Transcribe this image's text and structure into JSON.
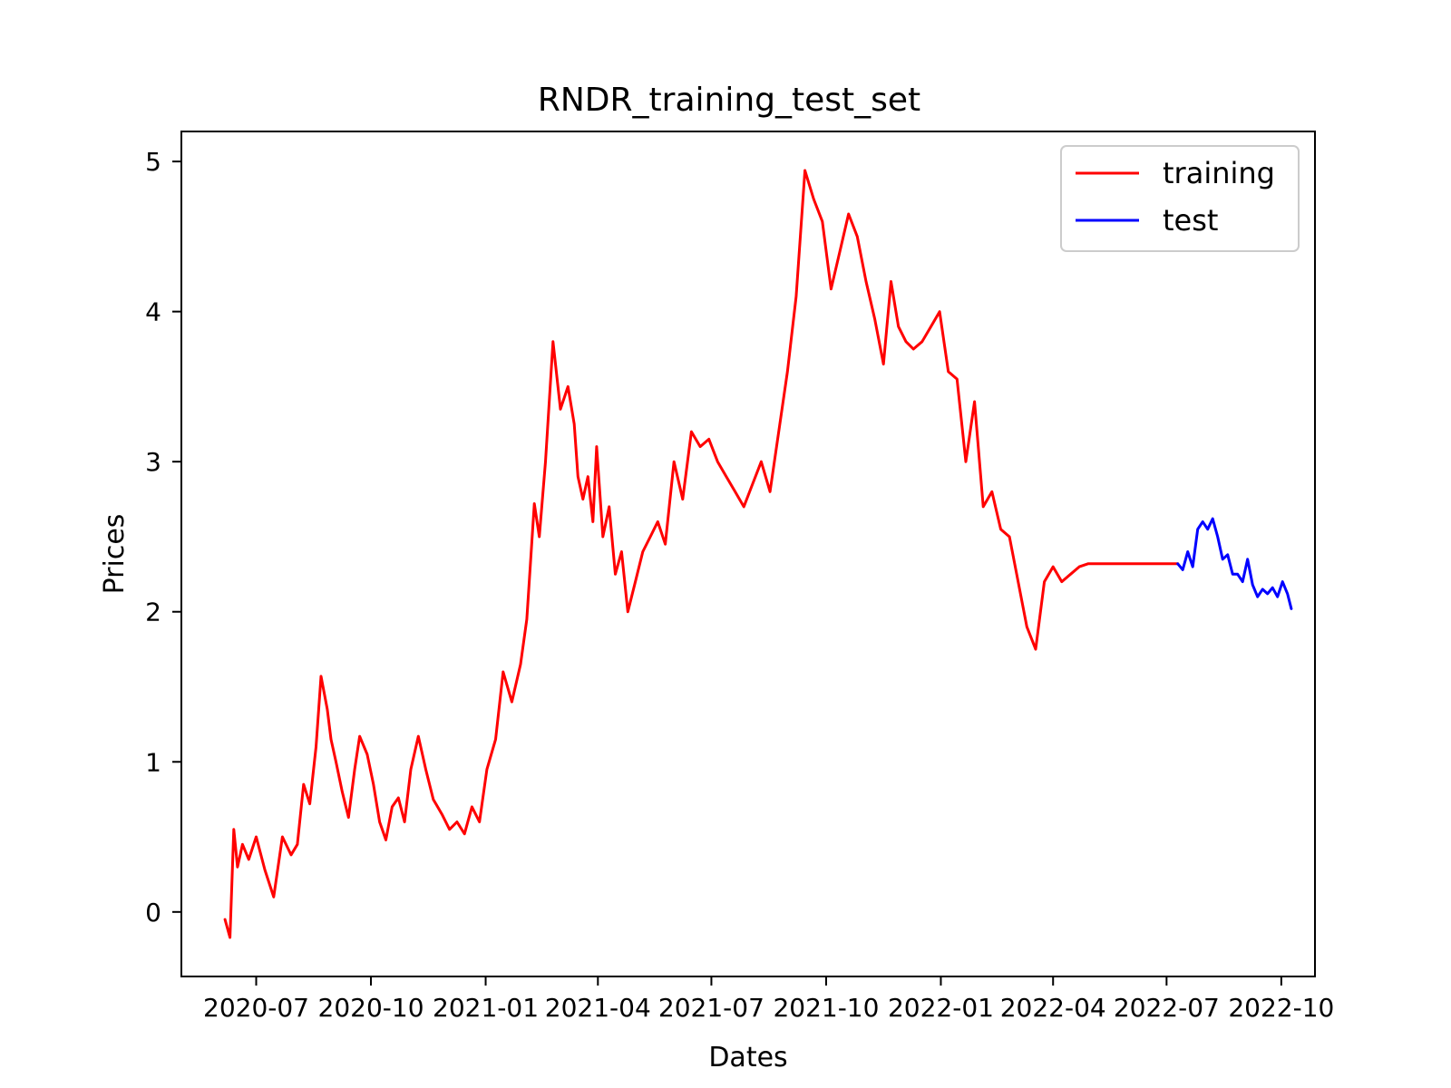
{
  "chart_data": {
    "type": "line",
    "title": "RNDR_training_test_set",
    "xlabel": "Dates",
    "ylabel": "Prices",
    "x_ticks": [
      "2020-07",
      "2020-10",
      "2021-01",
      "2021-04",
      "2021-07",
      "2021-10",
      "2022-01",
      "2022-04",
      "2022-07",
      "2022-10"
    ],
    "y_ticks": [
      "0",
      "1",
      "2",
      "3",
      "4",
      "5"
    ],
    "xlim": [
      "2020-05-02",
      "2022-10-28"
    ],
    "ylim": [
      -0.43,
      5.2
    ],
    "grid": false,
    "legend_position": "top-right",
    "series": [
      {
        "name": "training",
        "color": "#ff0000",
        "x": [
          "2020-06-06",
          "2020-06-10",
          "2020-06-13",
          "2020-06-16",
          "2020-06-20",
          "2020-06-25",
          "2020-07-01",
          "2020-07-08",
          "2020-07-15",
          "2020-07-22",
          "2020-07-29",
          "2020-08-03",
          "2020-08-08",
          "2020-08-13",
          "2020-08-18",
          "2020-08-22",
          "2020-08-27",
          "2020-08-30",
          "2020-09-03",
          "2020-09-08",
          "2020-09-13",
          "2020-09-18",
          "2020-09-22",
          "2020-09-28",
          "2020-10-03",
          "2020-10-08",
          "2020-10-13",
          "2020-10-18",
          "2020-10-23",
          "2020-10-28",
          "2020-11-02",
          "2020-11-08",
          "2020-11-14",
          "2020-11-20",
          "2020-11-27",
          "2020-12-03",
          "2020-12-09",
          "2020-12-15",
          "2020-12-21",
          "2020-12-27",
          "2021-01-02",
          "2021-01-09",
          "2021-01-15",
          "2021-01-22",
          "2021-01-29",
          "2021-02-03",
          "2021-02-09",
          "2021-02-13",
          "2021-02-18",
          "2021-02-24",
          "2021-03-02",
          "2021-03-08",
          "2021-03-13",
          "2021-03-16",
          "2021-03-20",
          "2021-03-24",
          "2021-03-28",
          "2021-03-31",
          "2021-04-05",
          "2021-04-10",
          "2021-04-15",
          "2021-04-20",
          "2021-04-25",
          "2021-05-01",
          "2021-05-07",
          "2021-05-13",
          "2021-05-19",
          "2021-05-25",
          "2021-06-01",
          "2021-06-08",
          "2021-06-15",
          "2021-06-22",
          "2021-06-29",
          "2021-07-06",
          "2021-07-13",
          "2021-07-20",
          "2021-07-27",
          "2021-08-03",
          "2021-08-10",
          "2021-08-17",
          "2021-08-24",
          "2021-08-31",
          "2021-09-07",
          "2021-09-14",
          "2021-09-21",
          "2021-09-28",
          "2021-10-05",
          "2021-10-12",
          "2021-10-19",
          "2021-10-26",
          "2021-11-02",
          "2021-11-09",
          "2021-11-16",
          "2021-11-22",
          "2021-11-28",
          "2021-12-04",
          "2021-12-10",
          "2021-12-17",
          "2021-12-24",
          "2021-12-31",
          "2022-01-07",
          "2022-01-14",
          "2022-01-21",
          "2022-01-28",
          "2022-02-04",
          "2022-02-11",
          "2022-02-18",
          "2022-02-25",
          "2022-03-04",
          "2022-03-11",
          "2022-03-18",
          "2022-03-25",
          "2022-04-01",
          "2022-04-08",
          "2022-04-15",
          "2022-04-22",
          "2022-04-29",
          "2022-05-06",
          "2022-05-13",
          "2022-05-20",
          "2022-05-27",
          "2022-06-03",
          "2022-06-10",
          "2022-06-15",
          "2022-06-20",
          "2022-06-27",
          "2022-07-04",
          "2022-07-10"
        ],
        "y": [
          -0.05,
          -0.17,
          0.55,
          0.3,
          0.45,
          0.35,
          0.5,
          0.28,
          0.1,
          0.5,
          0.38,
          0.45,
          0.85,
          0.72,
          1.1,
          1.57,
          1.35,
          1.15,
          1.0,
          0.8,
          0.63,
          0.95,
          1.17,
          1.05,
          0.85,
          0.6,
          0.48,
          0.7,
          0.76,
          0.6,
          0.95,
          1.17,
          0.95,
          0.75,
          0.65,
          0.55,
          0.6,
          0.52,
          0.7,
          0.6,
          0.95,
          1.15,
          1.6,
          1.4,
          1.65,
          1.95,
          2.72,
          2.5,
          3.0,
          3.8,
          3.35,
          3.5,
          3.25,
          2.9,
          2.75,
          2.9,
          2.6,
          3.1,
          2.5,
          2.7,
          2.25,
          2.4,
          2.0,
          2.2,
          2.4,
          2.5,
          2.6,
          2.45,
          3.0,
          2.75,
          3.2,
          3.1,
          3.15,
          3.0,
          2.9,
          2.8,
          2.7,
          2.85,
          3.0,
          2.8,
          3.2,
          3.6,
          4.1,
          4.94,
          4.75,
          4.6,
          4.15,
          4.4,
          4.65,
          4.5,
          4.2,
          3.95,
          3.65,
          4.2,
          3.9,
          3.8,
          3.75,
          3.8,
          3.9,
          4.0,
          3.6,
          3.55,
          3.0,
          3.4,
          2.7,
          2.8,
          2.55,
          2.5,
          2.2,
          1.9,
          1.75,
          2.2,
          2.3,
          2.2,
          2.25,
          2.3,
          2.32,
          2.32,
          2.32,
          2.32,
          2.32,
          2.32,
          2.32,
          2.32,
          2.32,
          2.32,
          2.32,
          2.32
        ]
      },
      {
        "name": "test",
        "color": "#0000ff",
        "x": [
          "2022-07-10",
          "2022-07-14",
          "2022-07-18",
          "2022-07-22",
          "2022-07-26",
          "2022-07-30",
          "2022-08-03",
          "2022-08-07",
          "2022-08-11",
          "2022-08-15",
          "2022-08-19",
          "2022-08-23",
          "2022-08-27",
          "2022-08-31",
          "2022-09-04",
          "2022-09-08",
          "2022-09-12",
          "2022-09-16",
          "2022-09-20",
          "2022-09-24",
          "2022-09-28",
          "2022-10-02",
          "2022-10-06",
          "2022-10-09"
        ],
        "y": [
          2.32,
          2.28,
          2.4,
          2.3,
          2.55,
          2.6,
          2.55,
          2.62,
          2.5,
          2.35,
          2.38,
          2.25,
          2.25,
          2.2,
          2.35,
          2.18,
          2.1,
          2.15,
          2.12,
          2.16,
          2.1,
          2.2,
          2.12,
          2.02
        ]
      }
    ]
  }
}
